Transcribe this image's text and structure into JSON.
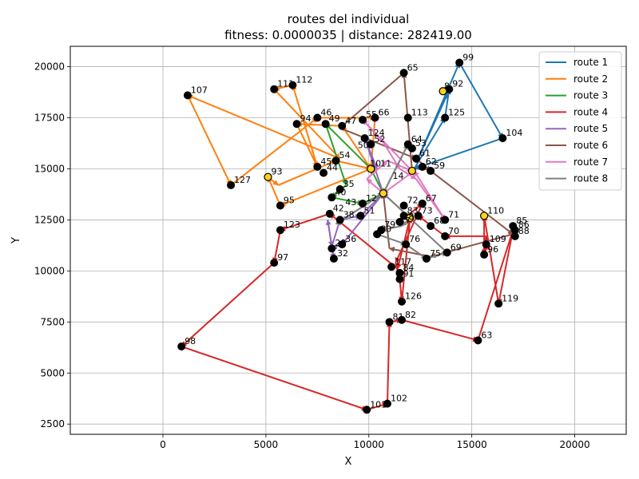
{
  "chart_data": {
    "type": "line",
    "title": "routes del individual",
    "subtitle": "fitness: 0.0000035 | distance: 282419.00",
    "xlabel": "X",
    "ylabel": "Y",
    "xlim": [
      -4500,
      22500
    ],
    "ylim": [
      2000,
      21000
    ],
    "xticks": [
      0,
      5000,
      10000,
      15000,
      20000
    ],
    "yticks": [
      2500,
      5000,
      7500,
      10000,
      12500,
      15000,
      17500,
      20000
    ],
    "xtick_labels": [
      "0",
      "5000",
      "10000",
      "15000",
      "20000"
    ],
    "ytick_labels": [
      "2500",
      "5000",
      "7500",
      "10000",
      "12500",
      "15000",
      "17500",
      "20000"
    ],
    "grid": true,
    "legend_position": "top-right",
    "depots": [
      {
        "x": 13600,
        "y": 18800
      },
      {
        "x": 5100,
        "y": 14600
      },
      {
        "x": 10100,
        "y": 15000
      },
      {
        "x": 12100,
        "y": 14900
      },
      {
        "x": 10700,
        "y": 13800
      },
      {
        "x": 12000,
        "y": 12600
      },
      {
        "x": 15600,
        "y": 12700
      }
    ],
    "nodes": [
      {
        "id": "99",
        "x": 14400,
        "y": 20200
      },
      {
        "id": "92",
        "x": 13900,
        "y": 18900
      },
      {
        "id": "125",
        "x": 13700,
        "y": 17500
      },
      {
        "id": "104",
        "x": 16500,
        "y": 16500
      },
      {
        "id": "65",
        "x": 11700,
        "y": 19700
      },
      {
        "id": "113",
        "x": 11900,
        "y": 17500
      },
      {
        "id": "66",
        "x": 10300,
        "y": 17500
      },
      {
        "id": "55",
        "x": 9700,
        "y": 17400
      },
      {
        "id": "111",
        "x": 5400,
        "y": 18900
      },
      {
        "id": "112",
        "x": 6300,
        "y": 19100
      },
      {
        "id": "107",
        "x": 1200,
        "y": 18600
      },
      {
        "id": "46",
        "x": 7500,
        "y": 17500
      },
      {
        "id": "94",
        "x": 6500,
        "y": 17200
      },
      {
        "id": "49",
        "x": 7900,
        "y": 17200
      },
      {
        "id": "47",
        "x": 8700,
        "y": 17100
      },
      {
        "id": "124",
        "x": 9800,
        "y": 16500
      },
      {
        "id": "52",
        "x": 10100,
        "y": 16200
      },
      {
        "id": "64",
        "x": 11900,
        "y": 16200
      },
      {
        "id": "127",
        "x": 3300,
        "y": 14200
      },
      {
        "id": "93",
        "x": 5100,
        "y": 14600
      },
      {
        "id": "95",
        "x": 5700,
        "y": 13200
      },
      {
        "id": "54",
        "x": 8400,
        "y": 15400
      },
      {
        "id": "45",
        "x": 7500,
        "y": 15100
      },
      {
        "id": "44",
        "x": 7800,
        "y": 14800
      },
      {
        "id": "35",
        "x": 8600,
        "y": 14000
      },
      {
        "id": "40",
        "x": 8200,
        "y": 13600
      },
      {
        "id": "112b",
        "x": 9700,
        "y": 13300
      },
      {
        "id": "101",
        "x": 9900,
        "y": 3200
      },
      {
        "id": "102",
        "x": 10900,
        "y": 3500
      },
      {
        "id": "82",
        "x": 11600,
        "y": 7600
      },
      {
        "id": "81",
        "x": 11000,
        "y": 7500
      },
      {
        "id": "126",
        "x": 11600,
        "y": 8500
      },
      {
        "id": "84",
        "x": 11500,
        "y": 9900
      },
      {
        "id": "91",
        "x": 11500,
        "y": 9600
      },
      {
        "id": "117",
        "x": 11100,
        "y": 10200
      },
      {
        "id": "76",
        "x": 11800,
        "y": 11300
      },
      {
        "id": "75",
        "x": 12800,
        "y": 10600
      },
      {
        "id": "69",
        "x": 13800,
        "y": 10900
      },
      {
        "id": "70",
        "x": 13700,
        "y": 11700
      },
      {
        "id": "71",
        "x": 13700,
        "y": 12500
      },
      {
        "id": "68",
        "x": 13000,
        "y": 12200
      },
      {
        "id": "67",
        "x": 12600,
        "y": 13300
      },
      {
        "id": "73",
        "x": 12400,
        "y": 12700
      },
      {
        "id": "83",
        "x": 11700,
        "y": 12700
      },
      {
        "id": "79",
        "x": 10600,
        "y": 12000
      },
      {
        "id": "80",
        "x": 10400,
        "y": 11800
      },
      {
        "id": "123",
        "x": 5700,
        "y": 12000
      },
      {
        "id": "97",
        "x": 5400,
        "y": 10400
      },
      {
        "id": "98",
        "x": 900,
        "y": 6300
      },
      {
        "id": "63",
        "x": 15300,
        "y": 6600
      },
      {
        "id": "119",
        "x": 16300,
        "y": 8400
      },
      {
        "id": "96",
        "x": 15600,
        "y": 10800
      },
      {
        "id": "109",
        "x": 15700,
        "y": 11300
      },
      {
        "id": "110",
        "x": 15600,
        "y": 12700
      },
      {
        "id": "85",
        "x": 17000,
        "y": 12200
      },
      {
        "id": "86",
        "x": 17100,
        "y": 12000
      },
      {
        "id": "88",
        "x": 17100,
        "y": 11700
      },
      {
        "id": "59",
        "x": 13000,
        "y": 14900
      },
      {
        "id": "62",
        "x": 12600,
        "y": 15100
      },
      {
        "id": "61",
        "x": 12300,
        "y": 15500
      },
      {
        "id": "53",
        "x": 12100,
        "y": 16000
      },
      {
        "id": "18",
        "x": 11500,
        "y": 12400
      },
      {
        "id": "72",
        "x": 11700,
        "y": 13200
      },
      {
        "id": "38",
        "x": 8600,
        "y": 12500
      },
      {
        "id": "36",
        "x": 8700,
        "y": 11300
      },
      {
        "id": "29",
        "x": 8200,
        "y": 11100
      },
      {
        "id": "32",
        "x": 8300,
        "y": 10600
      },
      {
        "id": "41",
        "x": 8100,
        "y": 12800
      },
      {
        "id": "51",
        "x": 9600,
        "y": 12700
      }
    ],
    "series": [
      {
        "name": "route 1",
        "color": "#1f77b4",
        "points": [
          [
            12300,
            15300
          ],
          [
            14400,
            20200
          ],
          [
            16500,
            16500
          ],
          [
            12200,
            15000
          ],
          [
            13700,
            17500
          ],
          [
            13900,
            18900
          ],
          [
            13700,
            18400
          ],
          [
            12300,
            15300
          ]
        ]
      },
      {
        "name": "route 2",
        "color": "#ff7f0e",
        "points": [
          [
            10100,
            15000
          ],
          [
            8700,
            17100
          ],
          [
            6500,
            17200
          ],
          [
            7500,
            15100
          ],
          [
            6300,
            19100
          ],
          [
            5400,
            18900
          ],
          [
            8600,
            15500
          ],
          [
            1200,
            18600
          ],
          [
            3300,
            14200
          ],
          [
            7500,
            17500
          ],
          [
            10300,
            17500
          ],
          [
            10100,
            15000
          ],
          [
            5700,
            13200
          ],
          [
            5100,
            14600
          ],
          [
            5600,
            14200
          ],
          [
            8400,
            15400
          ],
          [
            10100,
            15000
          ]
        ]
      },
      {
        "name": "route 3",
        "color": "#2ca02c",
        "points": [
          [
            10100,
            15000
          ],
          [
            7900,
            17200
          ],
          [
            8900,
            14200
          ],
          [
            8200,
            13600
          ],
          [
            9700,
            13300
          ],
          [
            10700,
            13800
          ],
          [
            10100,
            15000
          ]
        ]
      },
      {
        "name": "route 4",
        "color": "#d62728",
        "points": [
          [
            11500,
            12400
          ],
          [
            12600,
            13300
          ],
          [
            11300,
            10400
          ],
          [
            11500,
            9600
          ],
          [
            11600,
            8500
          ],
          [
            12000,
            12600
          ],
          [
            11400,
            10100
          ],
          [
            8100,
            12800
          ],
          [
            5700,
            12000
          ],
          [
            5400,
            10400
          ],
          [
            900,
            6300
          ],
          [
            9900,
            3200
          ],
          [
            10900,
            3500
          ],
          [
            11000,
            7500
          ],
          [
            11600,
            7600
          ],
          [
            15300,
            6600
          ],
          [
            17000,
            12000
          ],
          [
            16300,
            8400
          ],
          [
            15600,
            12700
          ],
          [
            15600,
            10800
          ],
          [
            15700,
            11300
          ],
          [
            15700,
            11700
          ],
          [
            13700,
            11700
          ],
          [
            12400,
            12700
          ]
        ]
      },
      {
        "name": "route 5",
        "color": "#9467bd",
        "points": [
          [
            10700,
            13800
          ],
          [
            8700,
            11300
          ],
          [
            8200,
            11100
          ],
          [
            8300,
            10600
          ],
          [
            8000,
            12500
          ],
          [
            8200,
            11200
          ],
          [
            8600,
            12500
          ],
          [
            9600,
            12700
          ],
          [
            10700,
            13800
          ],
          [
            9800,
            16500
          ],
          [
            10400,
            15000
          ]
        ]
      },
      {
        "name": "route 6",
        "color": "#8c564b",
        "points": [
          [
            12100,
            14900
          ],
          [
            11700,
            19700
          ],
          [
            8600,
            17000
          ],
          [
            12300,
            15500
          ],
          [
            13000,
            14900
          ],
          [
            17000,
            11800
          ],
          [
            13000,
            10700
          ],
          [
            11000,
            11100
          ],
          [
            10700,
            13800
          ]
        ]
      },
      {
        "name": "route 7",
        "color": "#e377c2",
        "points": [
          [
            12100,
            14900
          ],
          [
            9700,
            17400
          ],
          [
            10700,
            16300
          ],
          [
            11500,
            15000
          ],
          [
            12300,
            14500
          ],
          [
            13700,
            12500
          ],
          [
            12200,
            14900
          ],
          [
            10700,
            13800
          ],
          [
            9900,
            14500
          ],
          [
            10900,
            15400
          ],
          [
            12100,
            14900
          ]
        ]
      },
      {
        "name": "route 8",
        "color": "#7f7f7f",
        "points": [
          [
            10700,
            13800
          ],
          [
            12000,
            12600
          ],
          [
            11600,
            12200
          ],
          [
            10600,
            12000
          ],
          [
            10400,
            11800
          ],
          [
            11800,
            11300
          ],
          [
            12800,
            10600
          ],
          [
            13800,
            10900
          ],
          [
            10700,
            13800
          ],
          [
            8400,
            12300
          ],
          [
            10700,
            13800
          ],
          [
            11900,
            16200
          ],
          [
            10700,
            13800
          ]
        ]
      }
    ],
    "labels": [
      {
        "text": "99",
        "x": 14400,
        "y": 20200
      },
      {
        "text": "92",
        "x": 13900,
        "y": 18900
      },
      {
        "text": "8",
        "x": 13500,
        "y": 18800
      },
      {
        "text": "125",
        "x": 13700,
        "y": 17500
      },
      {
        "text": "104",
        "x": 16500,
        "y": 16500
      },
      {
        "text": "65",
        "x": 11700,
        "y": 19700
      },
      {
        "text": "113",
        "x": 11900,
        "y": 17500
      },
      {
        "text": "66",
        "x": 10300,
        "y": 17500
      },
      {
        "text": "55",
        "x": 9700,
        "y": 17400
      },
      {
        "text": "111",
        "x": 5400,
        "y": 18900
      },
      {
        "text": "112",
        "x": 6300,
        "y": 19100
      },
      {
        "text": "107",
        "x": 1200,
        "y": 18600
      },
      {
        "text": "46",
        "x": 7500,
        "y": 17500
      },
      {
        "text": "94",
        "x": 6500,
        "y": 17200
      },
      {
        "text": "49",
        "x": 7900,
        "y": 17200
      },
      {
        "text": "47",
        "x": 8700,
        "y": 17100
      },
      {
        "text": "124",
        "x": 9800,
        "y": 16500
      },
      {
        "text": "52",
        "x": 10100,
        "y": 16200
      },
      {
        "text": "64",
        "x": 11900,
        "y": 16200
      },
      {
        "text": "53",
        "x": 12100,
        "y": 16000
      },
      {
        "text": "61",
        "x": 12300,
        "y": 15500
      },
      {
        "text": "62",
        "x": 12600,
        "y": 15100
      },
      {
        "text": "59",
        "x": 13000,
        "y": 14900
      },
      {
        "text": "127",
        "x": 3300,
        "y": 14200
      },
      {
        "text": "93",
        "x": 5100,
        "y": 14600
      },
      {
        "text": "95",
        "x": 5700,
        "y": 13200
      },
      {
        "text": "54",
        "x": 8400,
        "y": 15400
      },
      {
        "text": "45",
        "x": 7500,
        "y": 15100
      },
      {
        "text": "44",
        "x": 7800,
        "y": 14800
      },
      {
        "text": "35",
        "x": 8600,
        "y": 14000
      },
      {
        "text": "40",
        "x": 8200,
        "y": 13600
      },
      {
        "text": "12",
        "x": 9700,
        "y": 13300
      },
      {
        "text": "14",
        "x": 11000,
        "y": 14400
      },
      {
        "text": "11",
        "x": 10400,
        "y": 15000
      },
      {
        "text": "10",
        "x": 9900,
        "y": 15000
      },
      {
        "text": "50",
        "x": 9300,
        "y": 15900
      },
      {
        "text": "51",
        "x": 9600,
        "y": 12700
      },
      {
        "text": "42",
        "x": 8100,
        "y": 12800
      },
      {
        "text": "43",
        "x": 8700,
        "y": 13100
      },
      {
        "text": "38",
        "x": 8600,
        "y": 12500
      },
      {
        "text": "36",
        "x": 8700,
        "y": 11300
      },
      {
        "text": "29",
        "x": 8200,
        "y": 11100
      },
      {
        "text": "32",
        "x": 8300,
        "y": 10600
      },
      {
        "text": "18",
        "x": 11500,
        "y": 12400
      },
      {
        "text": "72",
        "x": 11700,
        "y": 13200
      },
      {
        "text": "83",
        "x": 11700,
        "y": 12700
      },
      {
        "text": "7",
        "x": 11600,
        "y": 12200
      },
      {
        "text": "67",
        "x": 12600,
        "y": 13300
      },
      {
        "text": "73",
        "x": 12400,
        "y": 12700
      },
      {
        "text": "68",
        "x": 13000,
        "y": 12200
      },
      {
        "text": "71",
        "x": 13700,
        "y": 12500
      },
      {
        "text": "70",
        "x": 13700,
        "y": 11700
      },
      {
        "text": "69",
        "x": 13800,
        "y": 10900
      },
      {
        "text": "75",
        "x": 12800,
        "y": 10600
      },
      {
        "text": "76",
        "x": 11800,
        "y": 11300
      },
      {
        "text": "79",
        "x": 10600,
        "y": 12000
      },
      {
        "text": "80",
        "x": 10400,
        "y": 11800
      },
      {
        "text": "117",
        "x": 11100,
        "y": 10200
      },
      {
        "text": "84",
        "x": 11500,
        "y": 9900
      },
      {
        "text": "91",
        "x": 11500,
        "y": 9600
      },
      {
        "text": "126",
        "x": 11600,
        "y": 8500
      },
      {
        "text": "82",
        "x": 11600,
        "y": 7600
      },
      {
        "text": "81",
        "x": 11000,
        "y": 7500
      },
      {
        "text": "102",
        "x": 10900,
        "y": 3500
      },
      {
        "text": "101",
        "x": 9900,
        "y": 3200
      },
      {
        "text": "123",
        "x": 5700,
        "y": 12000
      },
      {
        "text": "97",
        "x": 5400,
        "y": 10400
      },
      {
        "text": "98",
        "x": 900,
        "y": 6300
      },
      {
        "text": "63",
        "x": 15300,
        "y": 6600
      },
      {
        "text": "119",
        "x": 16300,
        "y": 8400
      },
      {
        "text": "96",
        "x": 15600,
        "y": 10800
      },
      {
        "text": "109",
        "x": 15700,
        "y": 11300
      },
      {
        "text": "110",
        "x": 15600,
        "y": 12700
      },
      {
        "text": "85",
        "x": 17000,
        "y": 12200
      },
      {
        "text": "86",
        "x": 17100,
        "y": 12000
      },
      {
        "text": "88",
        "x": 17100,
        "y": 11700
      }
    ]
  }
}
